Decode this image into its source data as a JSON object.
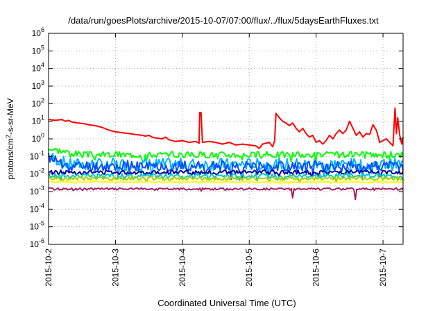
{
  "chart_data": {
    "type": "line",
    "title": "/data/run/goesPlots/archive/2015-10-07/07:00/flux/../flux/5daysEarthFluxes.txt",
    "xlabel": "Coordinated Universal Time (UTC)",
    "ylabel_parts": [
      "protons/cm",
      "2",
      "-s-sr-MeV"
    ],
    "y_scale": "log",
    "ylim_exp": [
      -6,
      6
    ],
    "y_ticks": [
      {
        "base": "10",
        "exp": "-6"
      },
      {
        "base": "10",
        "exp": "-5"
      },
      {
        "base": "10",
        "exp": "-4"
      },
      {
        "base": "10",
        "exp": "-3"
      },
      {
        "base": "10",
        "exp": "-2"
      },
      {
        "base": "10",
        "exp": "-1"
      },
      {
        "base": "10",
        "exp": "0"
      },
      {
        "base": "10",
        "exp": "1"
      },
      {
        "base": "10",
        "exp": "2"
      },
      {
        "base": "10",
        "exp": "3"
      },
      {
        "base": "10",
        "exp": "4"
      },
      {
        "base": "10",
        "exp": "5"
      },
      {
        "base": "10",
        "exp": "6"
      }
    ],
    "x_ticks": [
      "2015-10-2",
      "2015-10-3",
      "2015-10-4",
      "2015-10-5",
      "2015-10-6",
      "2015-10-7"
    ],
    "xlim_days": [
      0,
      5.3
    ],
    "grid": true,
    "series": [
      {
        "color": "#ff0000",
        "points": [
          [
            0.0,
            1.1
          ],
          [
            0.1,
            1.05
          ],
          [
            0.2,
            1.1
          ],
          [
            0.25,
            1.0
          ],
          [
            0.3,
            1.05
          ],
          [
            0.35,
            0.95
          ],
          [
            0.45,
            0.9
          ],
          [
            0.55,
            0.85
          ],
          [
            0.6,
            0.8
          ],
          [
            0.7,
            0.75
          ],
          [
            0.8,
            0.65
          ],
          [
            0.9,
            0.5
          ],
          [
            0.95,
            0.45
          ],
          [
            1.0,
            0.4
          ],
          [
            1.1,
            0.35
          ],
          [
            1.2,
            0.3
          ],
          [
            1.3,
            0.25
          ],
          [
            1.4,
            0.2
          ],
          [
            1.45,
            0.15
          ],
          [
            1.5,
            0.2
          ],
          [
            1.55,
            0.1
          ],
          [
            1.6,
            0.05
          ],
          [
            1.7,
            0.0
          ],
          [
            1.75,
            0.1
          ],
          [
            1.8,
            -0.05
          ],
          [
            1.9,
            -0.15
          ],
          [
            2.0,
            -0.1
          ],
          [
            2.1,
            -0.2
          ],
          [
            2.2,
            -0.15
          ],
          [
            2.25,
            -0.25
          ],
          [
            2.26,
            1.5
          ],
          [
            2.28,
            1.5
          ],
          [
            2.3,
            -0.2
          ],
          [
            2.4,
            -0.15
          ],
          [
            2.5,
            -0.2
          ],
          [
            2.6,
            -0.3
          ],
          [
            2.7,
            -0.2
          ],
          [
            2.8,
            -0.35
          ],
          [
            2.9,
            -0.3
          ],
          [
            3.0,
            -0.35
          ],
          [
            3.1,
            -0.4
          ],
          [
            3.15,
            -0.55
          ],
          [
            3.2,
            -0.3
          ],
          [
            3.3,
            -0.2
          ],
          [
            3.35,
            -0.45
          ],
          [
            3.38,
            -0.1
          ],
          [
            3.4,
            1.45
          ],
          [
            3.45,
            1.2
          ],
          [
            3.5,
            1.0
          ],
          [
            3.55,
            0.9
          ],
          [
            3.6,
            0.75
          ],
          [
            3.65,
            0.9
          ],
          [
            3.7,
            0.6
          ],
          [
            3.75,
            0.4
          ],
          [
            3.8,
            0.6
          ],
          [
            3.85,
            0.3
          ],
          [
            3.9,
            0.1
          ],
          [
            3.95,
            0.2
          ],
          [
            4.0,
            -0.2
          ],
          [
            4.05,
            -0.1
          ],
          [
            4.1,
            -0.3
          ],
          [
            4.15,
            -0.1
          ],
          [
            4.2,
            0.2
          ],
          [
            4.25,
            0.0
          ],
          [
            4.3,
            0.3
          ],
          [
            4.35,
            0.5
          ],
          [
            4.4,
            0.3
          ],
          [
            4.45,
            0.5
          ],
          [
            4.5,
            1.0
          ],
          [
            4.55,
            0.6
          ],
          [
            4.6,
            0.2
          ],
          [
            4.65,
            0.4
          ],
          [
            4.7,
            0.1
          ],
          [
            4.75,
            0.3
          ],
          [
            4.8,
            0.25
          ],
          [
            4.85,
            0.8
          ],
          [
            4.9,
            0.5
          ],
          [
            4.95,
            -0.2
          ],
          [
            5.0,
            -0.1
          ],
          [
            5.05,
            0.0
          ],
          [
            5.1,
            -0.2
          ],
          [
            5.15,
            -0.4
          ],
          [
            5.18,
            1.75
          ],
          [
            5.2,
            0.3
          ],
          [
            5.22,
            1.2
          ],
          [
            5.25,
            0.2
          ],
          [
            5.28,
            -0.3
          ],
          [
            5.3,
            0.1
          ]
        ]
      },
      {
        "color": "#00ff00",
        "level": -0.9,
        "amp": 0.18,
        "seed": 3,
        "start": -0.55,
        "startSpan": 0.5
      },
      {
        "color": "#00b4ff",
        "level": -1.45,
        "amp": 0.35,
        "seed": 7,
        "start": -1.0,
        "startSpan": 0.3
      },
      {
        "color": "#0050ff",
        "level": -1.55,
        "amp": 0.3,
        "seed": 11,
        "start": -1.05,
        "startSpan": 0.3
      },
      {
        "color": "#0000a0",
        "level": -1.9,
        "amp": 0.12,
        "seed": 13
      },
      {
        "color": "#00c8c8",
        "level": -2.1,
        "amp": 0.12,
        "seed": 17
      },
      {
        "color": "#a0d000",
        "level": -2.25,
        "amp": 0.1,
        "seed": 19
      },
      {
        "color": "#ffff00",
        "level": -2.45,
        "amp": 0.05,
        "seed": 23
      },
      {
        "color": "#a02060",
        "level": -2.85,
        "amp": 0.06,
        "seed": 29,
        "dips": [
          [
            3.65,
            -3.35
          ],
          [
            4.58,
            -3.45
          ]
        ]
      }
    ]
  }
}
